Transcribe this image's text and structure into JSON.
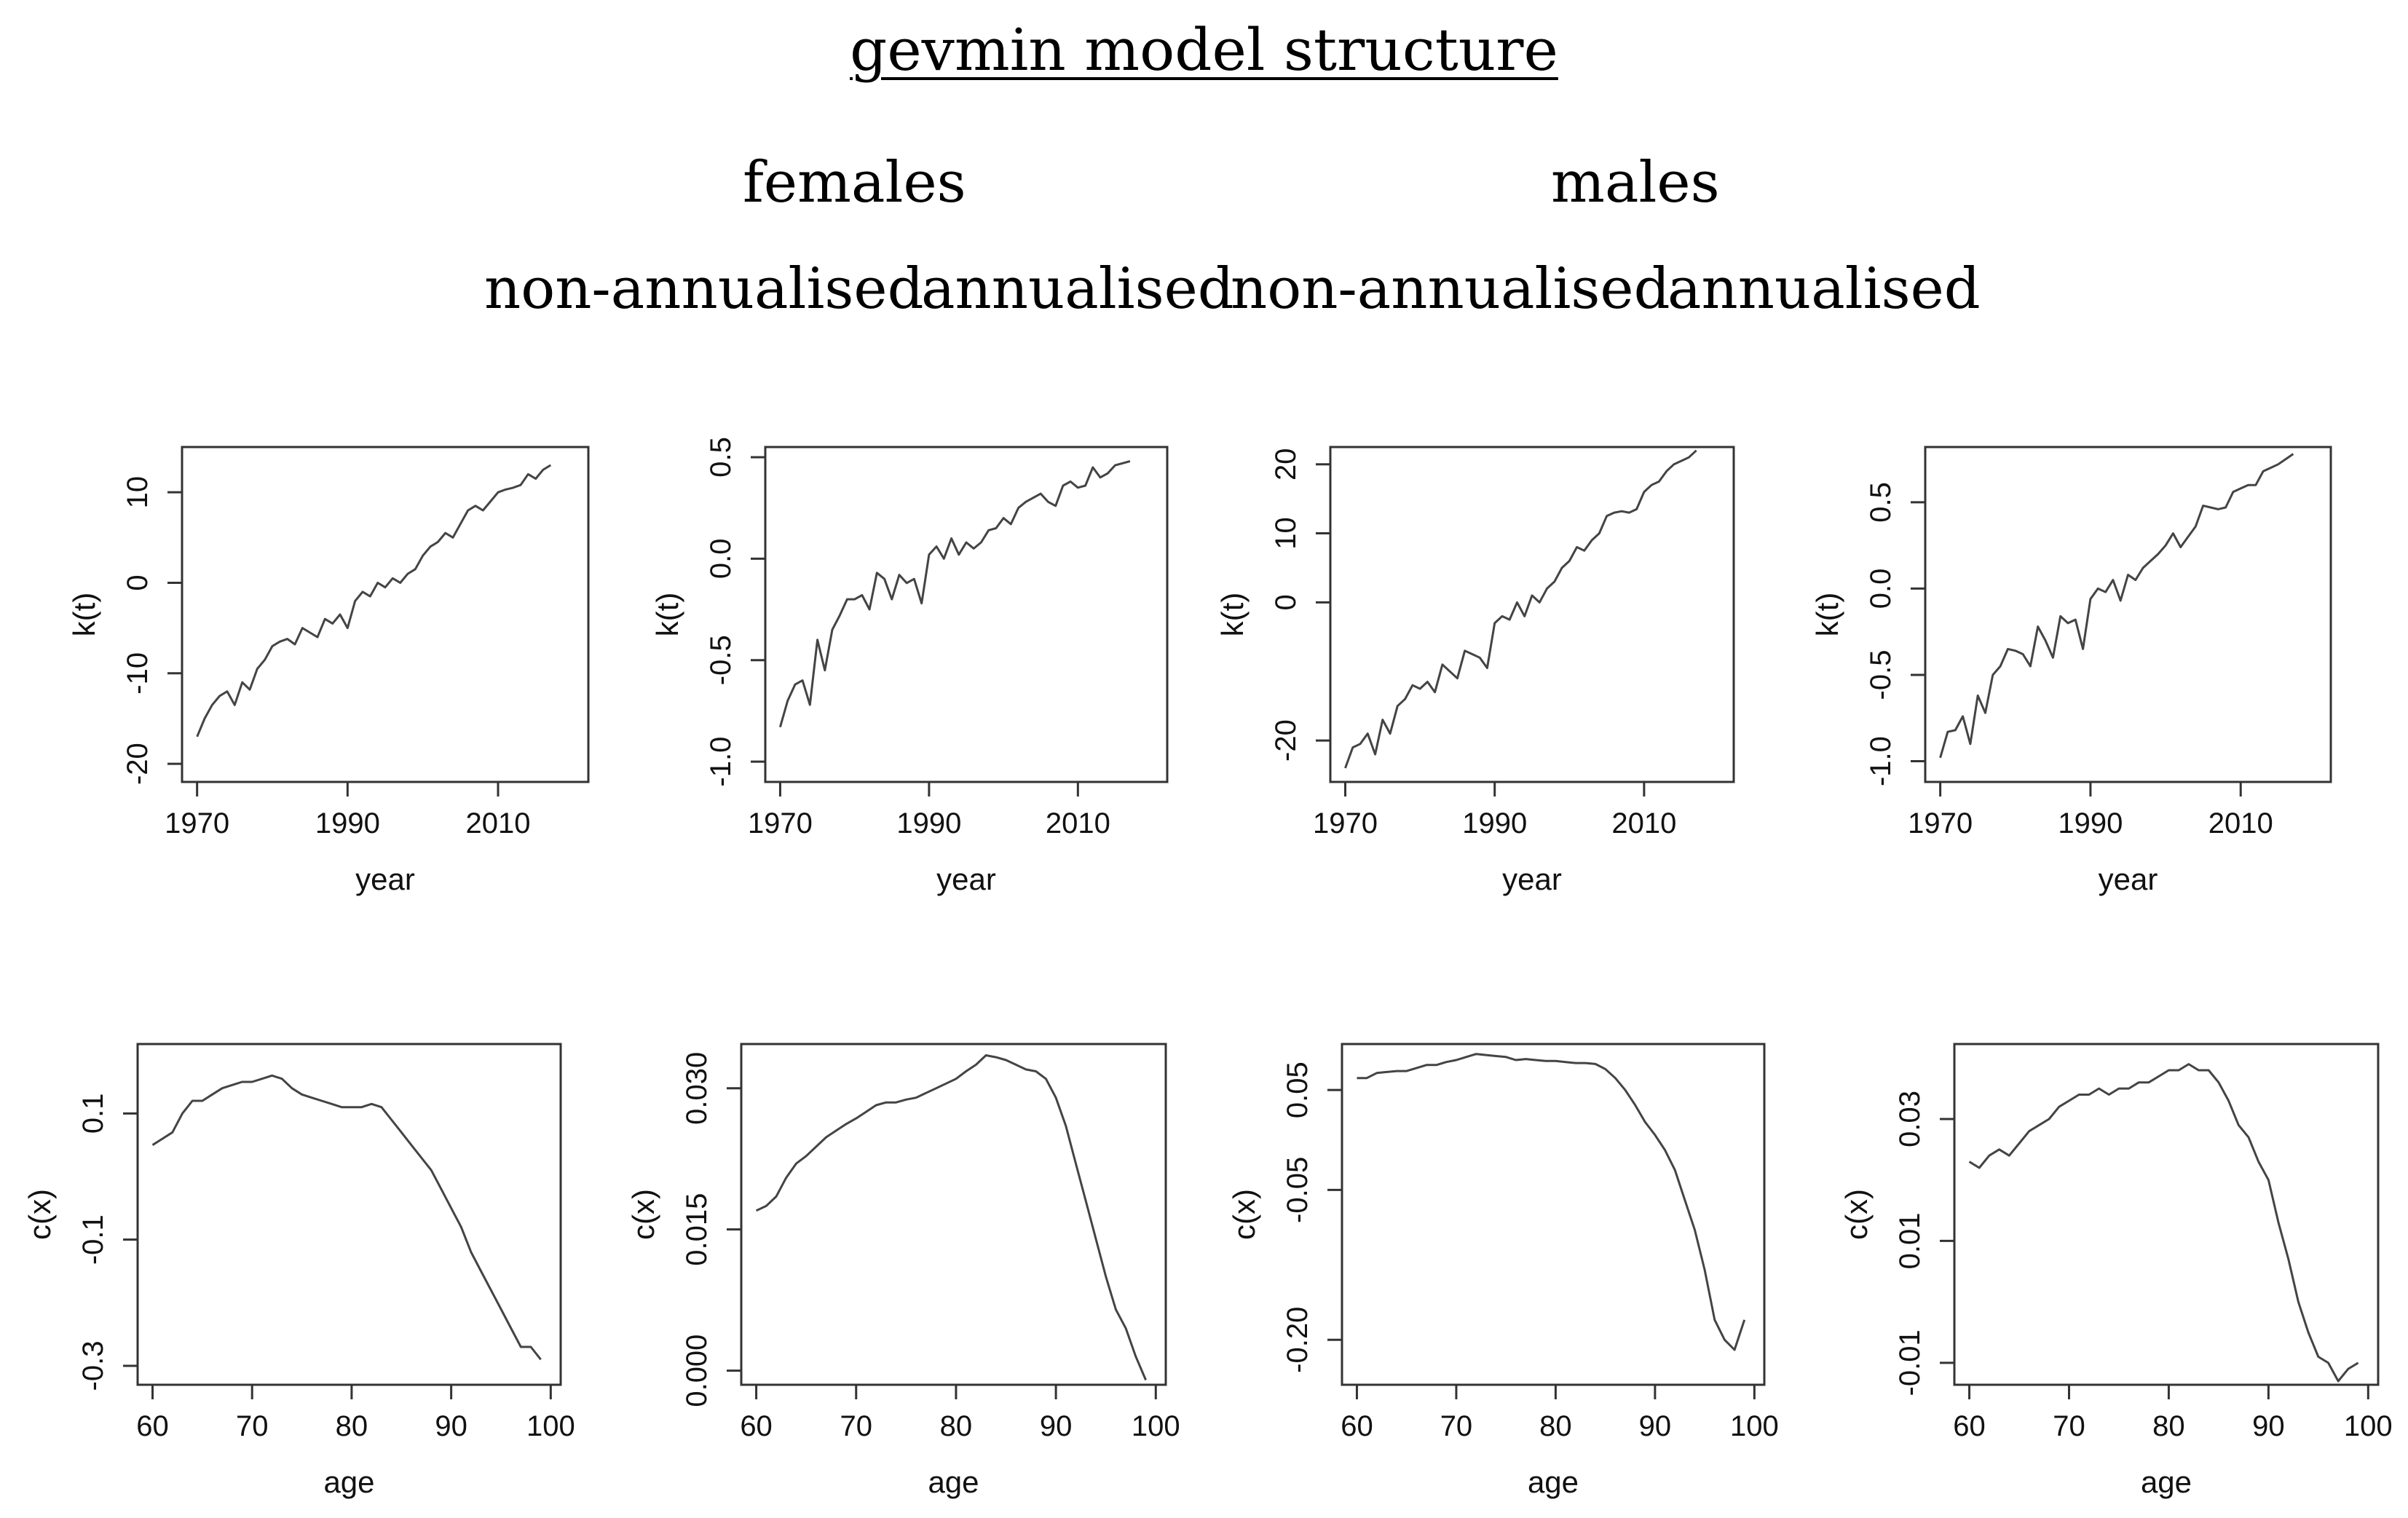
{
  "title": "gevmin model structure",
  "group_headers": [
    "females",
    "males"
  ],
  "sub_headers": [
    "non-annualised",
    "annualised",
    "non-annualised",
    "annualised"
  ],
  "chart_data": [
    {
      "type": "line",
      "panel": "females non-annualised k(t)",
      "xlabel": "year",
      "ylabel": "k(t)",
      "xlim": [
        1968,
        2022
      ],
      "ylim": [
        -22,
        15
      ],
      "xticks": [
        1970,
        1990,
        2010
      ],
      "xtick_labels": [
        "1970",
        "1990",
        "2010"
      ],
      "yticks": [
        -20,
        -10,
        0,
        10
      ],
      "ytick_labels": [
        "-20",
        "-10",
        "0",
        "10"
      ],
      "x": [
        1970,
        1971,
        1972,
        1973,
        1974,
        1975,
        1976,
        1977,
        1978,
        1979,
        1980,
        1981,
        1982,
        1983,
        1984,
        1985,
        1986,
        1987,
        1988,
        1989,
        1990,
        1991,
        1992,
        1993,
        1994,
        1995,
        1996,
        1997,
        1998,
        1999,
        2000,
        2001,
        2002,
        2003,
        2004,
        2005,
        2006,
        2007,
        2008,
        2009,
        2010,
        2011,
        2012,
        2013,
        2014,
        2015,
        2016,
        2017
      ],
      "y": [
        -17,
        -15,
        -13.5,
        -12.5,
        -12,
        -13.5,
        -11,
        -11.8,
        -9.5,
        -8.5,
        -7,
        -6.5,
        -6.2,
        -6.8,
        -5,
        -5.5,
        -6,
        -4,
        -4.5,
        -3.5,
        -5,
        -2,
        -1,
        -1.5,
        0,
        -0.5,
        0.5,
        0,
        1,
        1.5,
        3,
        4,
        4.5,
        5.5,
        5,
        6.5,
        8,
        8.5,
        8,
        9,
        10,
        10.3,
        10.5,
        10.8,
        12,
        11.5,
        12.5,
        13
      ]
    },
    {
      "type": "line",
      "panel": "females annualised k(t)",
      "xlabel": "year",
      "ylabel": "k(t)",
      "xlim": [
        1968,
        2022
      ],
      "ylim": [
        -1.1,
        0.55
      ],
      "xticks": [
        1970,
        1990,
        2010
      ],
      "xtick_labels": [
        "1970",
        "1990",
        "2010"
      ],
      "yticks": [
        -1.0,
        -0.5,
        0.0,
        0.5
      ],
      "ytick_labels": [
        "-1.0",
        "-0.5",
        "0.0",
        "0.5"
      ],
      "x": [
        1970,
        1971,
        1972,
        1973,
        1974,
        1975,
        1976,
        1977,
        1978,
        1979,
        1980,
        1981,
        1982,
        1983,
        1984,
        1985,
        1986,
        1987,
        1988,
        1989,
        1990,
        1991,
        1992,
        1993,
        1994,
        1995,
        1996,
        1997,
        1998,
        1999,
        2000,
        2001,
        2002,
        2003,
        2004,
        2005,
        2006,
        2007,
        2008,
        2009,
        2010,
        2011,
        2012,
        2013,
        2014,
        2015,
        2016,
        2017
      ],
      "y": [
        -0.83,
        -0.7,
        -0.62,
        -0.6,
        -0.72,
        -0.4,
        -0.55,
        -0.35,
        -0.28,
        -0.2,
        -0.2,
        -0.18,
        -0.25,
        -0.07,
        -0.1,
        -0.2,
        -0.08,
        -0.12,
        -0.1,
        -0.22,
        0.02,
        0.06,
        0.0,
        0.1,
        0.02,
        0.08,
        0.05,
        0.08,
        0.14,
        0.15,
        0.2,
        0.17,
        0.25,
        0.28,
        0.3,
        0.32,
        0.28,
        0.26,
        0.36,
        0.38,
        0.35,
        0.36,
        0.45,
        0.4,
        0.42,
        0.46,
        0.47,
        0.48
      ]
    },
    {
      "type": "line",
      "panel": "males non-annualised k(t)",
      "xlabel": "year",
      "ylabel": "k(t)",
      "xlim": [
        1968,
        2022
      ],
      "ylim": [
        -26,
        22.5
      ],
      "xticks": [
        1970,
        1990,
        2010
      ],
      "xtick_labels": [
        "1970",
        "1990",
        "2010"
      ],
      "yticks": [
        -20,
        0,
        10,
        20
      ],
      "ytick_labels": [
        "-20",
        "0",
        "10",
        "20"
      ],
      "x": [
        1970,
        1971,
        1972,
        1973,
        1974,
        1975,
        1976,
        1977,
        1978,
        1979,
        1980,
        1981,
        1982,
        1983,
        1984,
        1985,
        1986,
        1987,
        1988,
        1989,
        1990,
        1991,
        1992,
        1993,
        1994,
        1995,
        1996,
        1997,
        1998,
        1999,
        2000,
        2001,
        2002,
        2003,
        2004,
        2005,
        2006,
        2007,
        2008,
        2009,
        2010,
        2011,
        2012,
        2013,
        2014,
        2015,
        2016,
        2017
      ],
      "y": [
        -24,
        -21,
        -20.5,
        -19,
        -22,
        -17,
        -19,
        -15,
        -14,
        -12,
        -12.5,
        -11.5,
        -13,
        -9,
        -10,
        -11,
        -7,
        -7.5,
        -8,
        -9.5,
        -3,
        -2,
        -2.5,
        0,
        -2,
        1,
        0,
        2,
        3,
        5,
        6,
        8,
        7.5,
        9,
        10,
        12.5,
        13,
        13.2,
        13,
        13.5,
        16,
        17,
        17.5,
        19,
        20,
        20.5,
        21,
        22
      ]
    },
    {
      "type": "line",
      "panel": "males annualised k(t)",
      "xlabel": "year",
      "ylabel": "k(t)",
      "xlim": [
        1968,
        2022
      ],
      "ylim": [
        -1.12,
        0.82
      ],
      "xticks": [
        1970,
        1990,
        2010
      ],
      "xtick_labels": [
        "1970",
        "1990",
        "2010"
      ],
      "yticks": [
        -1.0,
        -0.5,
        0.0,
        0.5
      ],
      "ytick_labels": [
        "-1.0",
        "-0.5",
        "0.0",
        "0.5"
      ],
      "x": [
        1970,
        1971,
        1972,
        1973,
        1974,
        1975,
        1976,
        1977,
        1978,
        1979,
        1980,
        1981,
        1982,
        1983,
        1984,
        1985,
        1986,
        1987,
        1988,
        1989,
        1990,
        1991,
        1992,
        1993,
        1994,
        1995,
        1996,
        1997,
        1998,
        1999,
        2000,
        2001,
        2002,
        2003,
        2004,
        2005,
        2006,
        2007,
        2008,
        2009,
        2010,
        2011,
        2012,
        2013,
        2014,
        2015,
        2016,
        2017
      ],
      "y": [
        -0.98,
        -0.83,
        -0.82,
        -0.74,
        -0.9,
        -0.62,
        -0.72,
        -0.5,
        -0.45,
        -0.35,
        -0.36,
        -0.38,
        -0.45,
        -0.22,
        -0.3,
        -0.4,
        -0.16,
        -0.2,
        -0.18,
        -0.35,
        -0.06,
        0.0,
        -0.02,
        0.05,
        -0.07,
        0.08,
        0.05,
        0.12,
        0.16,
        0.2,
        0.25,
        0.32,
        0.24,
        0.3,
        0.36,
        0.48,
        0.47,
        0.46,
        0.47,
        0.56,
        0.58,
        0.6,
        0.6,
        0.68,
        0.7,
        0.72,
        0.75,
        0.78
      ]
    },
    {
      "type": "line",
      "panel": "females non-annualised c(x)",
      "xlabel": "age",
      "ylabel": "c(x)",
      "xlim": [
        58.5,
        101
      ],
      "ylim": [
        -0.33,
        0.21
      ],
      "xticks": [
        60,
        70,
        80,
        90,
        100
      ],
      "xtick_labels": [
        "60",
        "70",
        "80",
        "90",
        "100"
      ],
      "yticks": [
        -0.3,
        -0.1,
        0.1
      ],
      "ytick_labels": [
        "-0.3",
        "-0.1",
        "0.1"
      ],
      "x": [
        60,
        61,
        62,
        63,
        64,
        65,
        66,
        67,
        68,
        69,
        70,
        71,
        72,
        73,
        74,
        75,
        76,
        77,
        78,
        79,
        80,
        81,
        82,
        83,
        84,
        85,
        86,
        87,
        88,
        89,
        90,
        91,
        92,
        93,
        94,
        95,
        96,
        97,
        98,
        99
      ],
      "y": [
        0.05,
        0.06,
        0.07,
        0.1,
        0.12,
        0.12,
        0.13,
        0.14,
        0.145,
        0.15,
        0.15,
        0.155,
        0.16,
        0.155,
        0.14,
        0.13,
        0.125,
        0.12,
        0.115,
        0.11,
        0.11,
        0.11,
        0.115,
        0.11,
        0.09,
        0.07,
        0.05,
        0.03,
        0.01,
        -0.02,
        -0.05,
        -0.08,
        -0.12,
        -0.15,
        -0.18,
        -0.21,
        -0.24,
        -0.27,
        -0.27,
        -0.29
      ]
    },
    {
      "type": "line",
      "panel": "females annualised c(x)",
      "xlabel": "age",
      "ylabel": "c(x)",
      "xlim": [
        58.5,
        101
      ],
      "ylim": [
        -0.0015,
        0.0347
      ],
      "xticks": [
        60,
        70,
        80,
        90,
        100
      ],
      "xtick_labels": [
        "60",
        "70",
        "80",
        "90",
        "100"
      ],
      "yticks": [
        0.0,
        0.015,
        0.03
      ],
      "ytick_labels": [
        "0.000",
        "0.015",
        "0.030"
      ],
      "x": [
        60,
        61,
        62,
        63,
        64,
        65,
        66,
        67,
        68,
        69,
        70,
        71,
        72,
        73,
        74,
        75,
        76,
        77,
        78,
        79,
        80,
        81,
        82,
        83,
        84,
        85,
        86,
        87,
        88,
        89,
        90,
        91,
        92,
        93,
        94,
        95,
        96,
        97,
        98,
        99
      ],
      "y": [
        0.017,
        0.0175,
        0.0185,
        0.0205,
        0.022,
        0.0228,
        0.0238,
        0.0248,
        0.0255,
        0.0262,
        0.0268,
        0.0275,
        0.0282,
        0.0285,
        0.0285,
        0.0288,
        0.029,
        0.0295,
        0.03,
        0.0305,
        0.031,
        0.0318,
        0.0325,
        0.0335,
        0.0333,
        0.033,
        0.0325,
        0.032,
        0.0318,
        0.031,
        0.029,
        0.026,
        0.022,
        0.018,
        0.014,
        0.01,
        0.0065,
        0.0045,
        0.0015,
        -0.001
      ]
    },
    {
      "type": "line",
      "panel": "males non-annualised c(x)",
      "xlabel": "age",
      "ylabel": "c(x)",
      "xlim": [
        58.5,
        101
      ],
      "ylim": [
        -0.245,
        0.096
      ],
      "xticks": [
        60,
        70,
        80,
        90,
        100
      ],
      "xtick_labels": [
        "60",
        "70",
        "80",
        "90",
        "100"
      ],
      "yticks": [
        -0.2,
        -0.05,
        0.05
      ],
      "ytick_labels": [
        "-0.20",
        "-0.05",
        "0.05"
      ],
      "x": [
        60,
        61,
        62,
        63,
        64,
        65,
        66,
        67,
        68,
        69,
        70,
        71,
        72,
        73,
        74,
        75,
        76,
        77,
        78,
        79,
        80,
        81,
        82,
        83,
        84,
        85,
        86,
        87,
        88,
        89,
        90,
        91,
        92,
        93,
        94,
        95,
        96,
        97,
        98,
        99
      ],
      "y": [
        0.062,
        0.062,
        0.067,
        0.068,
        0.069,
        0.069,
        0.072,
        0.075,
        0.075,
        0.078,
        0.08,
        0.083,
        0.086,
        0.085,
        0.084,
        0.083,
        0.08,
        0.081,
        0.08,
        0.079,
        0.079,
        0.078,
        0.077,
        0.077,
        0.076,
        0.071,
        0.062,
        0.05,
        0.035,
        0.018,
        0.005,
        -0.01,
        -0.03,
        -0.06,
        -0.09,
        -0.13,
        -0.18,
        -0.2,
        -0.21,
        -0.18
      ]
    },
    {
      "type": "line",
      "panel": "males annualised c(x)",
      "xlabel": "age",
      "ylabel": "c(x)",
      "xlim": [
        58.5,
        101
      ],
      "ylim": [
        -0.0136,
        0.0423
      ],
      "xticks": [
        60,
        70,
        80,
        90,
        100
      ],
      "xtick_labels": [
        "60",
        "70",
        "80",
        "90",
        "100"
      ],
      "yticks": [
        -0.01,
        0.01,
        0.03
      ],
      "ytick_labels": [
        "-0.01",
        "0.01",
        "0.03"
      ],
      "x": [
        60,
        61,
        62,
        63,
        64,
        65,
        66,
        67,
        68,
        69,
        70,
        71,
        72,
        73,
        74,
        75,
        76,
        77,
        78,
        79,
        80,
        81,
        82,
        83,
        84,
        85,
        86,
        87,
        88,
        89,
        90,
        91,
        92,
        93,
        94,
        95,
        96,
        97,
        98,
        99
      ],
      "y": [
        0.023,
        0.022,
        0.024,
        0.025,
        0.024,
        0.026,
        0.028,
        0.029,
        0.03,
        0.032,
        0.033,
        0.034,
        0.034,
        0.035,
        0.034,
        0.035,
        0.035,
        0.036,
        0.036,
        0.037,
        0.038,
        0.038,
        0.039,
        0.038,
        0.038,
        0.036,
        0.033,
        0.029,
        0.027,
        0.023,
        0.02,
        0.013,
        0.007,
        0.0,
        -0.005,
        -0.009,
        -0.01,
        -0.013,
        -0.011,
        -0.01
      ]
    }
  ]
}
